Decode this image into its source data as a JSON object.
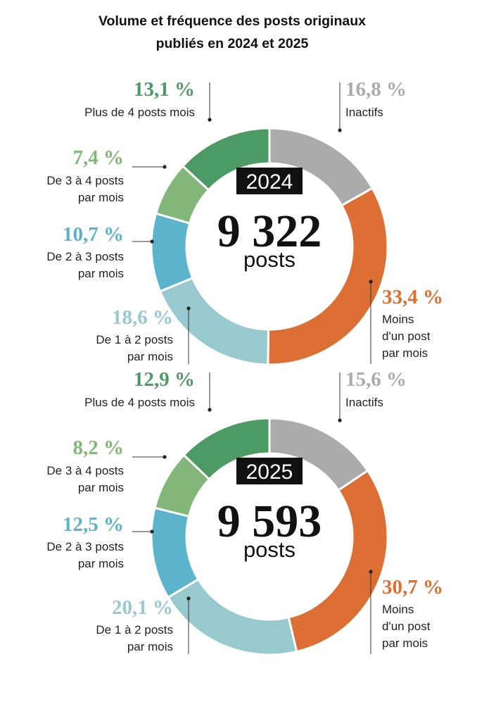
{
  "chart_data": {
    "type": "pie",
    "title": "Volume et fréquence des posts originaux\npubliés en 2024 et 2025",
    "categories": [
      "Inactifs",
      "Moins\nd'un post\npar mois",
      "De 1 à 2 posts\npar mois",
      "De 2 à 3 posts\npar mois",
      "De 3 à 4 posts\npar mois",
      "Plus de 4 posts mois"
    ],
    "colors": [
      "#ababab",
      "#dd6f34",
      "#97c9cf",
      "#5bb4cb",
      "#82b779",
      "#4d9b64"
    ],
    "charts": [
      {
        "year": "2024",
        "total": "9 322",
        "unit": "posts",
        "values": [
          16.8,
          33.4,
          18.6,
          10.7,
          7.4,
          13.1
        ],
        "value_labels": [
          "16,8 %",
          "33,4 %",
          "18,6 %",
          "10,7 %",
          "7,4 %",
          "13,1 %"
        ]
      },
      {
        "year": "2025",
        "total": "9 593",
        "unit": "posts",
        "values": [
          15.6,
          30.7,
          20.1,
          12.5,
          8.2,
          12.9
        ],
        "value_labels": [
          "15,6 %",
          "30,7 %",
          "20,1 %",
          "12,5 %",
          "8,2 %",
          "12,9 %"
        ]
      }
    ]
  }
}
